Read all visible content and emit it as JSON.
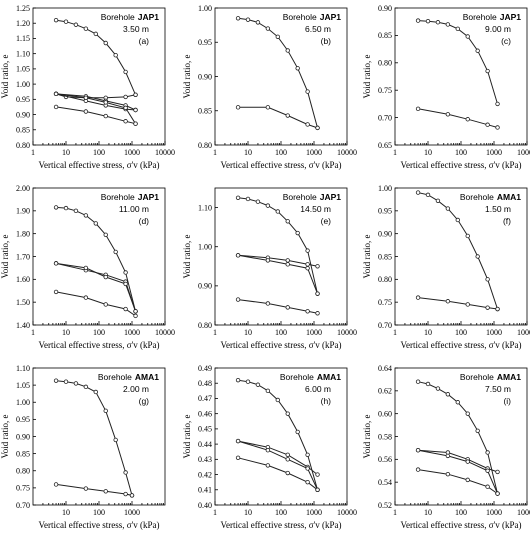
{
  "chart_data": [
    {
      "type": "line",
      "panel": "(a)",
      "borehole_prefix": "Borehole",
      "borehole": "JAP1",
      "depth": "3.50 m",
      "xlabel": "Vertical effective stress, σ'v (kPa)",
      "ylabel": "Void ratio, e",
      "x_scale": "log",
      "xlim": [
        1,
        10000
      ],
      "x_ticks": [
        1,
        10,
        100,
        1000,
        10000
      ],
      "ylim": [
        0.8,
        1.25
      ],
      "y_ticks": [
        "0.80",
        "0.85",
        "0.90",
        "0.95",
        "1.00",
        "1.05",
        "1.10",
        "1.15",
        "1.20",
        "1.25"
      ],
      "series": [
        {
          "x": [
            5,
            10,
            20,
            40,
            80,
            160,
            320,
            640,
            1280
          ],
          "y": [
            1.21,
            1.205,
            1.195,
            1.182,
            1.165,
            1.135,
            1.095,
            1.04,
            0.965
          ]
        },
        {
          "x": [
            1280,
            640,
            160,
            40,
            10,
            5
          ],
          "y": [
            0.965,
            0.958,
            0.955,
            0.955,
            0.958,
            0.968
          ]
        },
        {
          "x": [
            5,
            40,
            160,
            640,
            1280
          ],
          "y": [
            0.968,
            0.96,
            0.945,
            0.93,
            0.915
          ]
        },
        {
          "x": [
            1280,
            640,
            160,
            40,
            5
          ],
          "y": [
            0.915,
            0.918,
            0.93,
            0.945,
            0.968
          ]
        },
        {
          "x": [
            5,
            40,
            160,
            640,
            1280
          ],
          "y": [
            0.968,
            0.955,
            0.94,
            0.922,
            0.87
          ]
        },
        {
          "x": [
            1280,
            640,
            160,
            40,
            5
          ],
          "y": [
            0.87,
            0.878,
            0.895,
            0.91,
            0.925
          ]
        }
      ]
    },
    {
      "type": "line",
      "panel": "(b)",
      "borehole_prefix": "Borehole",
      "borehole": "JAP1",
      "depth": "6.50 m",
      "xlabel": "Vertical effective stress, σ'v (kPa)",
      "ylabel": "Void ratio, e",
      "x_scale": "log",
      "xlim": [
        1,
        10000
      ],
      "x_ticks": [
        1,
        10,
        100,
        1000,
        10000
      ],
      "ylim": [
        0.8,
        1.0
      ],
      "y_ticks": [
        "0.80",
        "0.85",
        "0.90",
        "0.95",
        "1.00"
      ],
      "series": [
        {
          "x": [
            5,
            10,
            20,
            40,
            80,
            160,
            320,
            640,
            1280
          ],
          "y": [
            0.985,
            0.983,
            0.979,
            0.97,
            0.958,
            0.938,
            0.912,
            0.878,
            0.825
          ]
        },
        {
          "x": [
            1280,
            640,
            160,
            40,
            5
          ],
          "y": [
            0.825,
            0.83,
            0.843,
            0.855,
            0.855
          ]
        }
      ]
    },
    {
      "type": "line",
      "panel": "(c)",
      "borehole_prefix": "Borehole",
      "borehole": "JAP1",
      "depth": "9.00 m",
      "xlabel": "Vertical effective stress, σ'v (kPa)",
      "ylabel": "Void ratio, e",
      "x_scale": "log",
      "xlim": [
        1,
        10000
      ],
      "x_ticks": [
        1,
        10,
        100,
        1000,
        10000
      ],
      "ylim": [
        0.65,
        0.9
      ],
      "y_ticks": [
        "0.65",
        "0.70",
        "0.75",
        "0.80",
        "0.85",
        "0.90"
      ],
      "series": [
        {
          "x": [
            5,
            10,
            20,
            40,
            80,
            160,
            320,
            640,
            1280
          ],
          "y": [
            0.877,
            0.876,
            0.874,
            0.87,
            0.862,
            0.848,
            0.822,
            0.785,
            0.725
          ]
        },
        {
          "x": [
            1280,
            640,
            160,
            40,
            5
          ],
          "y": [
            0.682,
            0.687,
            0.697,
            0.706,
            0.716
          ]
        }
      ]
    },
    {
      "type": "line",
      "panel": "(d)",
      "borehole_prefix": "Borehole",
      "borehole": "JAP1",
      "depth": "11.00 m",
      "xlabel": "Vertical effective stress, σ'v (kPa)",
      "ylabel": "Void ratio, e",
      "x_scale": "log",
      "xlim": [
        1,
        10000
      ],
      "x_ticks": [
        1,
        10,
        100,
        1000,
        10000
      ],
      "ylim": [
        1.4,
        2.0
      ],
      "y_ticks": [
        "1.40",
        "1.50",
        "1.60",
        "1.70",
        "1.80",
        "1.90",
        "2.00"
      ],
      "series": [
        {
          "x": [
            5,
            10,
            20,
            40,
            80,
            160,
            320,
            640,
            1280
          ],
          "y": [
            1.915,
            1.912,
            1.9,
            1.88,
            1.845,
            1.795,
            1.72,
            1.63,
            1.46
          ]
        },
        {
          "x": [
            1280,
            640,
            160,
            40,
            5
          ],
          "y": [
            1.46,
            1.59,
            1.62,
            1.64,
            1.67
          ]
        },
        {
          "x": [
            5,
            40,
            160,
            640,
            1280
          ],
          "y": [
            1.67,
            1.65,
            1.61,
            1.58,
            1.46
          ]
        },
        {
          "x": [
            1280,
            640,
            160,
            40,
            5
          ],
          "y": [
            1.44,
            1.47,
            1.49,
            1.52,
            1.545
          ]
        }
      ]
    },
    {
      "type": "line",
      "panel": "(e)",
      "borehole_prefix": "Borehole",
      "borehole": "JAP1",
      "depth": "14.50 m",
      "xlabel": "Vertical effective stress, σ'v (kPa)",
      "ylabel": "Void ratio, e",
      "x_scale": "log",
      "xlim": [
        1,
        10000
      ],
      "x_ticks": [
        1,
        10,
        100,
        1000,
        10000
      ],
      "ylim": [
        0.8,
        1.15
      ],
      "y_ticks": [
        "0.80",
        "0.90",
        "1.00",
        "1.10"
      ],
      "series": [
        {
          "x": [
            5,
            10,
            20,
            40,
            80,
            160,
            320,
            640,
            1280
          ],
          "y": [
            1.125,
            1.122,
            1.115,
            1.105,
            1.09,
            1.065,
            1.035,
            0.99,
            0.88
          ]
        },
        {
          "x": [
            1280,
            640,
            160,
            40,
            5
          ],
          "y": [
            0.95,
            0.955,
            0.965,
            0.972,
            0.978
          ]
        },
        {
          "x": [
            5,
            40,
            160,
            640,
            1280
          ],
          "y": [
            0.978,
            0.965,
            0.955,
            0.945,
            0.88
          ]
        },
        {
          "x": [
            1280,
            640,
            160,
            40,
            5
          ],
          "y": [
            0.83,
            0.835,
            0.845,
            0.855,
            0.865
          ]
        }
      ]
    },
    {
      "type": "line",
      "panel": "(f)",
      "borehole_prefix": "Borehole",
      "borehole": "AMA1",
      "depth": "1.50 m",
      "xlabel": "Vertical effective stress, σ'v (kPa)",
      "ylabel": "Void ratio, e",
      "x_scale": "log",
      "xlim": [
        1,
        10000
      ],
      "x_ticks": [
        1,
        10,
        100,
        1000,
        10000
      ],
      "ylim": [
        0.7,
        1.0
      ],
      "y_ticks": [
        "0.70",
        "0.75",
        "0.80",
        "0.85",
        "0.90",
        "0.95",
        "1.00"
      ],
      "series": [
        {
          "x": [
            5,
            10,
            20,
            40,
            80,
            160,
            320,
            640,
            1280
          ],
          "y": [
            0.99,
            0.985,
            0.972,
            0.955,
            0.93,
            0.895,
            0.85,
            0.8,
            0.735
          ]
        },
        {
          "x": [
            1280,
            640,
            160,
            40,
            5
          ],
          "y": [
            0.735,
            0.738,
            0.745,
            0.752,
            0.76
          ]
        }
      ]
    },
    {
      "type": "line",
      "panel": "(g)",
      "borehole_prefix": "Borehole",
      "borehole": "AMA1",
      "depth": "2.00 m",
      "xlabel": "Vertical effective stress, σ'v (kPa)",
      "ylabel": "Void ratio, e",
      "x_scale": "log",
      "xlim": [
        1,
        10000
      ],
      "x_ticks": [
        10,
        100,
        1000
      ],
      "ylim": [
        0.7,
        1.1
      ],
      "y_ticks": [
        "0.70",
        "0.75",
        "0.80",
        "0.85",
        "0.90",
        "0.95",
        "1.00",
        "1.05",
        "1.10"
      ],
      "series": [
        {
          "x": [
            5,
            10,
            20,
            40,
            80,
            160,
            320,
            640,
            1000
          ],
          "y": [
            1.063,
            1.06,
            1.055,
            1.045,
            1.03,
            0.975,
            0.89,
            0.795,
            0.728
          ]
        },
        {
          "x": [
            1000,
            640,
            160,
            40,
            5
          ],
          "y": [
            0.728,
            0.732,
            0.74,
            0.748,
            0.76
          ]
        }
      ]
    },
    {
      "type": "line",
      "panel": "(h)",
      "borehole_prefix": "Borehole",
      "borehole": "AMA1",
      "depth": "6.00 m",
      "xlabel": "Vertical effective stress, σ'v (kPa)",
      "ylabel": "Void ratio, e",
      "x_scale": "log",
      "xlim": [
        1,
        10000
      ],
      "x_ticks": [
        1,
        10,
        100,
        1000,
        10000
      ],
      "ylim": [
        0.4,
        0.49
      ],
      "y_ticks": [
        "0.40",
        "0.41",
        "0.42",
        "0.43",
        "0.44",
        "0.45",
        "0.46",
        "0.47",
        "0.48",
        "0.49"
      ],
      "series": [
        {
          "x": [
            5,
            10,
            20,
            40,
            80,
            160,
            320,
            640,
            1280
          ],
          "y": [
            0.482,
            0.481,
            0.479,
            0.475,
            0.469,
            0.46,
            0.448,
            0.433,
            0.41
          ]
        },
        {
          "x": [
            1280,
            640,
            160,
            40,
            5
          ],
          "y": [
            0.42,
            0.425,
            0.433,
            0.438,
            0.442
          ]
        },
        {
          "x": [
            5,
            40,
            160,
            640,
            1280
          ],
          "y": [
            0.442,
            0.436,
            0.43,
            0.424,
            0.41
          ]
        },
        {
          "x": [
            1280,
            640,
            160,
            40,
            5
          ],
          "y": [
            0.41,
            0.415,
            0.421,
            0.426,
            0.431
          ]
        }
      ]
    },
    {
      "type": "line",
      "panel": "(i)",
      "borehole_prefix": "Borehole",
      "borehole": "AMA1",
      "depth": "7.50 m",
      "xlabel": "Vertical effective stress, σ'v (kPa)",
      "ylabel": "Void ratio, e",
      "x_scale": "log",
      "xlim": [
        1,
        10000
      ],
      "x_ticks": [
        1,
        10,
        100,
        1000,
        10000
      ],
      "ylim": [
        0.52,
        0.64
      ],
      "y_ticks": [
        "0.52",
        "0.54",
        "0.56",
        "0.58",
        "0.60",
        "0.62",
        "0.64"
      ],
      "series": [
        {
          "x": [
            5,
            10,
            20,
            40,
            80,
            160,
            320,
            640,
            1280
          ],
          "y": [
            0.628,
            0.626,
            0.622,
            0.617,
            0.61,
            0.6,
            0.585,
            0.566,
            0.53
          ]
        },
        {
          "x": [
            1280,
            640,
            160,
            40,
            5
          ],
          "y": [
            0.549,
            0.552,
            0.56,
            0.566,
            0.568
          ]
        },
        {
          "x": [
            5,
            40,
            160,
            640,
            1280
          ],
          "y": [
            0.568,
            0.563,
            0.558,
            0.55,
            0.53
          ]
        },
        {
          "x": [
            1280,
            640,
            160,
            40,
            5
          ],
          "y": [
            0.53,
            0.536,
            0.542,
            0.547,
            0.551
          ]
        }
      ]
    }
  ]
}
